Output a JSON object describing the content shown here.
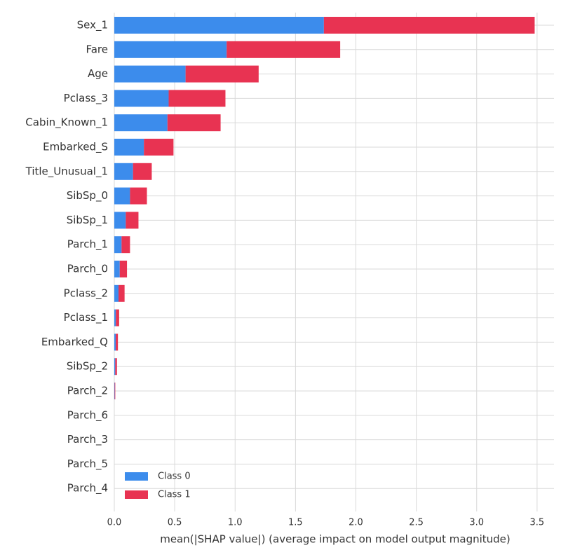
{
  "chart_data": {
    "type": "bar",
    "orientation": "horizontal",
    "stacked": true,
    "categories": [
      "Sex_1",
      "Fare",
      "Age",
      "Pclass_3",
      "Cabin_Known_1",
      "Embarked_S",
      "Title_Unusual_1",
      "SibSp_0",
      "SibSp_1",
      "Parch_1",
      "Parch_0",
      "Pclass_2",
      "Pclass_1",
      "Embarked_Q",
      "SibSp_2",
      "Parch_2",
      "Parch_6",
      "Parch_3",
      "Parch_5",
      "Parch_4"
    ],
    "series": [
      {
        "name": "Class 0",
        "color": "#3c8cec",
        "values": [
          1.735,
          0.93,
          0.59,
          0.45,
          0.44,
          0.245,
          0.155,
          0.13,
          0.095,
          0.06,
          0.045,
          0.035,
          0.013,
          0.012,
          0.008,
          0.003,
          0.0,
          0.0,
          0.0,
          0.0
        ]
      },
      {
        "name": "Class 1",
        "color": "#e83352",
        "values": [
          1.745,
          0.94,
          0.605,
          0.47,
          0.44,
          0.245,
          0.155,
          0.14,
          0.105,
          0.07,
          0.06,
          0.05,
          0.027,
          0.018,
          0.014,
          0.005,
          0.0,
          0.0,
          0.0,
          0.0
        ]
      }
    ],
    "xlim": [
      0,
      3.64
    ],
    "xticks": [
      {
        "value": 0,
        "label": "0.0"
      },
      0.5,
      {
        "value": 1,
        "label": "1.0"
      },
      1.5,
      {
        "value": 2,
        "label": "2.0"
      },
      2.5,
      {
        "value": 3,
        "label": "3.0"
      },
      3.5
    ],
    "xlabel": "mean(|SHAP value|) (average impact on model output magnitude)",
    "grid": true,
    "legend": "lower left"
  }
}
